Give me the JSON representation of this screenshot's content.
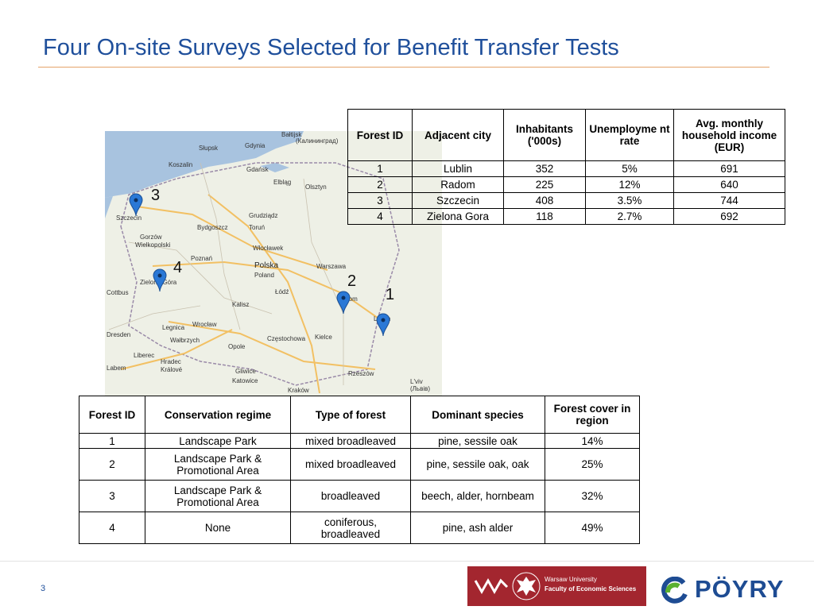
{
  "title": "Four On-site Surveys Selected for Benefit Transfer Tests",
  "page_number": "3",
  "map": {
    "place_labels": [
      "Słupsk",
      "Gdynia",
      "Bałtijsk",
      "(Калининград)",
      "Koszalin",
      "Gdańsk",
      "Elbląg",
      "Olsztyn",
      "Szczecin",
      "Grudziądz",
      "Bydgoszcz",
      "Toruń",
      "Gorzów",
      "Wielkopolski",
      "Poznań",
      "Włocławek",
      "Polska",
      "Poland",
      "Warszawa",
      "Zielona Góra",
      "Cottbus",
      "Łódź",
      "Radom",
      "Kalisz",
      "Lublin",
      "Legnica",
      "Wrocław",
      "Kielce",
      "Dresden",
      "Wałbrzych",
      "Opole",
      "Częstochowa",
      "Liberec",
      "Hradec",
      "Králové",
      "Labem",
      "Gliwice",
      "Katowice",
      "Rzeszów",
      "Kraków",
      "L'viv",
      "(Львів)"
    ],
    "markers": [
      {
        "id": "3",
        "label": "3"
      },
      {
        "id": "4",
        "label": "4"
      },
      {
        "id": "2",
        "label": "2"
      },
      {
        "id": "1",
        "label": "1"
      }
    ],
    "colors": {
      "marker": "#2a78d6",
      "sea": "#a8c3df",
      "land": "#eef0e6",
      "road": "#f2c063",
      "border": "#9a8aa8"
    }
  },
  "table1": {
    "headers": [
      "Forest ID",
      "Adjacent city",
      "Inhabitants ('000s)",
      "Unemployme nt rate",
      "Avg. monthly household income (EUR)"
    ],
    "rows": [
      [
        "1",
        "Lublin",
        "352",
        "5%",
        "691"
      ],
      [
        "2",
        "Radom",
        "225",
        "12%",
        "640"
      ],
      [
        "3",
        "Szczecin",
        "408",
        "3.5%",
        "744"
      ],
      [
        "4",
        "Zielona Gora",
        "118",
        "2.7%",
        "692"
      ]
    ]
  },
  "table2": {
    "headers": [
      "Forest ID",
      "Conservation regime",
      "Type of forest",
      "Dominant species",
      "Forest cover in region"
    ],
    "rows": [
      [
        "1",
        "Landscape Park",
        "mixed broadleaved",
        "pine, sessile oak",
        "14%"
      ],
      [
        "2",
        "Landscape Park & Promotional Area",
        "mixed broadleaved",
        "pine, sessile oak, oak",
        "25%"
      ],
      [
        "3",
        "Landscape Park & Promotional Area",
        "broadleaved",
        "beech, alder, hornbeam",
        "32%"
      ],
      [
        "4",
        "None",
        "coniferous, broadleaved",
        "pine, ash alder",
        "49%"
      ]
    ]
  },
  "logos": {
    "uw_line1": "Warsaw University",
    "uw_line2": "Faculty of Economic Sciences",
    "poyry": "PÖYRY"
  }
}
